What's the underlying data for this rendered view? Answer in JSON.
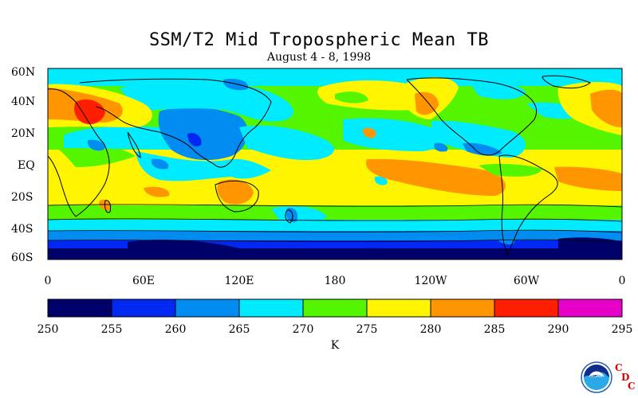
{
  "title": "SSM/T2 Mid Tropospheric Mean TB",
  "subtitle": "August 4 - 8, 1998",
  "axes": {
    "y_ticks": [
      "60N",
      "40N",
      "20N",
      "EQ",
      "20S",
      "40S",
      "60S"
    ],
    "x_ticks": [
      "0",
      "60E",
      "120E",
      "180",
      "120W",
      "60W",
      "0"
    ]
  },
  "colorbar": {
    "levels": [
      "250",
      "255",
      "260",
      "265",
      "270",
      "275",
      "280",
      "285",
      "290",
      "295"
    ],
    "colors": [
      "#00006b",
      "#0028f0",
      "#008cf0",
      "#00ebff",
      "#55f500",
      "#fff500",
      "#ff9600",
      "#ff1e00",
      "#e600c8"
    ],
    "unit": "K"
  },
  "logo": {
    "name": "NOAA",
    "letters": [
      "C",
      "D",
      "C"
    ]
  }
}
